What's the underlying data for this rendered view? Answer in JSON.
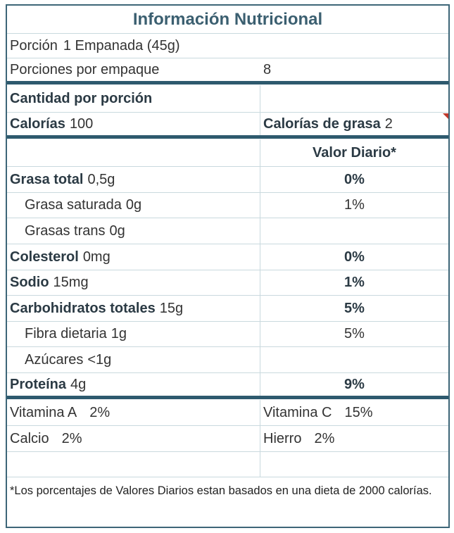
{
  "title": "Información Nutricional",
  "serving": {
    "label": "Porción",
    "value": "1 Empanada (45g)"
  },
  "servings_per_container": {
    "label": "Porciones por empaque",
    "value": "8"
  },
  "amount_per_serving": "Cantidad por porción",
  "calories": {
    "label": "Calorías",
    "value": "100"
  },
  "calories_from_fat": {
    "label": "Calorías de grasa",
    "value": "2"
  },
  "daily_value_header": "Valor Diario*",
  "nutrients": [
    {
      "label": "Grasa total",
      "amount": "0,5g",
      "dv": "0%"
    },
    {
      "label": "Grasa saturada",
      "amount": "0g",
      "dv": "1%"
    },
    {
      "label": "Grasas trans",
      "amount": "0g",
      "dv": ""
    },
    {
      "label": "Colesterol",
      "amount": "0mg",
      "dv": "0%"
    },
    {
      "label": "Sodio",
      "amount": "15mg",
      "dv": "1%"
    },
    {
      "label": "Carbohidratos totales",
      "amount": "15g",
      "dv": "5%"
    },
    {
      "label": "Fibra dietaria",
      "amount": "1g",
      "dv": "5%"
    },
    {
      "label": "Azúcares",
      "amount": "<1g",
      "dv": ""
    },
    {
      "label": "Proteína",
      "amount": "4g",
      "dv": "9%"
    }
  ],
  "vitamins": {
    "vitamin_a": {
      "label": "Vitamina A",
      "value": "2%"
    },
    "vitamin_c": {
      "label": "Vitamina C",
      "value": "15%"
    },
    "calcium": {
      "label": "Calcio",
      "value": "2%"
    },
    "iron": {
      "label": "Hierro",
      "value": "2%"
    }
  },
  "footnote": "*Los porcentajes de Valores Diarios estan basados en una dieta de 2000 calorías.",
  "colors": {
    "border": "#3d6678",
    "thick_rule": "#2e5a6e",
    "title": "#3b5f70",
    "corner_marker": "#c0392b"
  }
}
